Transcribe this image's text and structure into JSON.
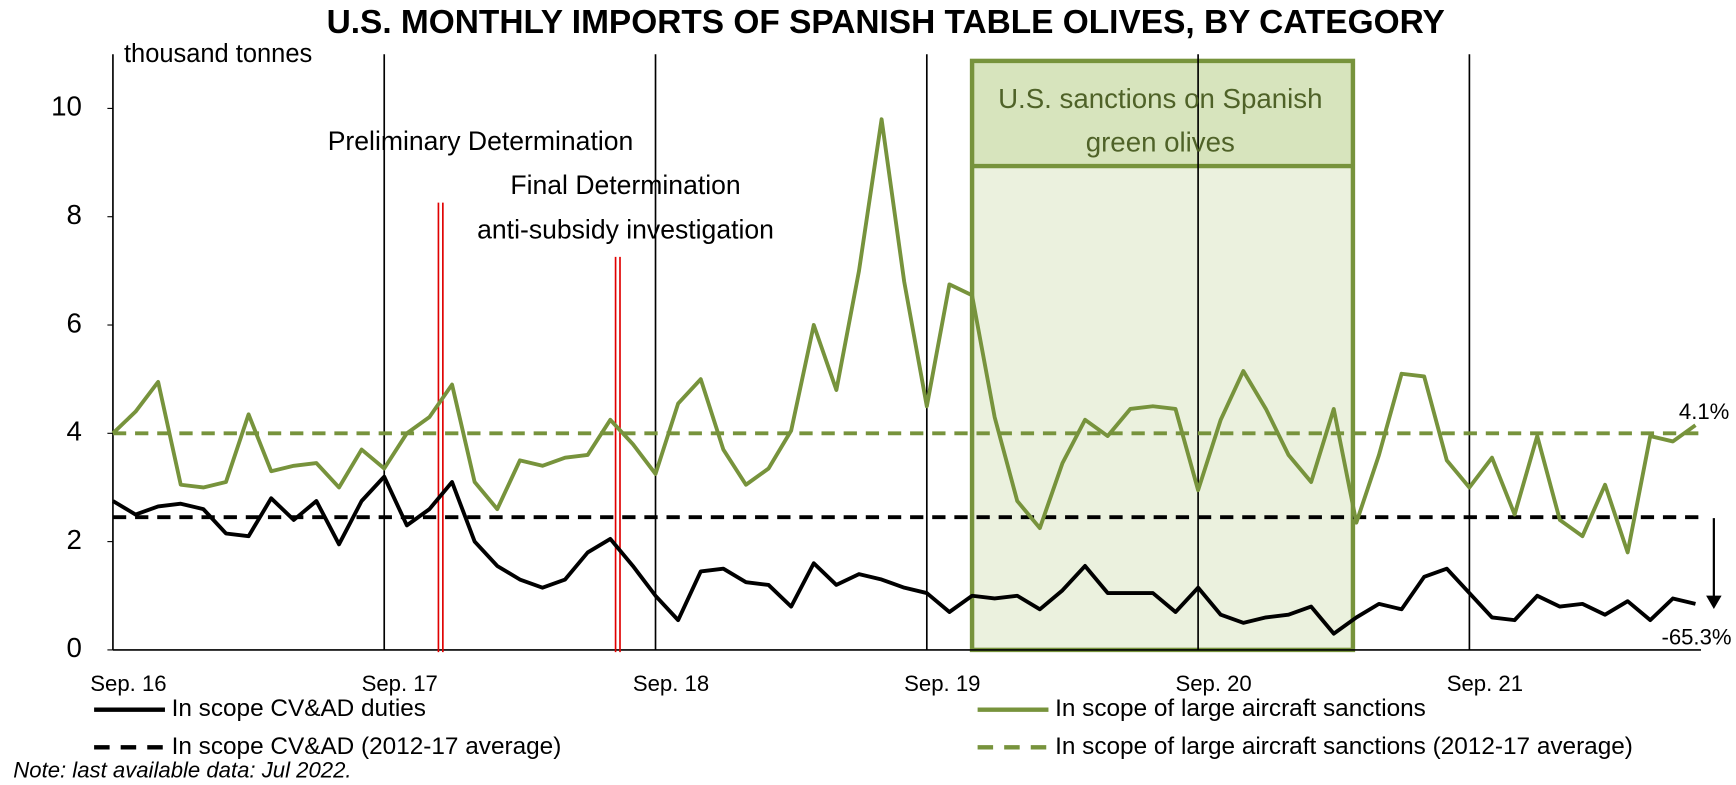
{
  "chart_data": {
    "type": "line",
    "title": "U.S. MONTHLY IMPORTS OF SPANISH TABLE OLIVES, BY CATEGORY",
    "y_label": "thousand  tonnes",
    "categories": [
      "Sep. 16",
      null,
      null,
      null,
      null,
      null,
      null,
      null,
      null,
      null,
      null,
      null,
      "Sep. 17",
      null,
      null,
      null,
      null,
      null,
      null,
      null,
      null,
      null,
      null,
      null,
      "Sep. 18",
      null,
      null,
      null,
      null,
      null,
      null,
      null,
      null,
      null,
      null,
      null,
      "Sep. 19",
      null,
      null,
      null,
      null,
      null,
      null,
      null,
      null,
      null,
      null,
      null,
      "Sep. 20",
      null,
      null,
      null,
      null,
      null,
      null,
      null,
      null,
      null,
      null,
      null,
      "Sep. 21",
      null,
      null,
      null,
      null,
      null,
      null,
      null,
      null,
      null,
      null
    ],
    "series": [
      {
        "name": "In scope CV&AD duties",
        "color": "#000000",
        "values": [
          2.75,
          2.5,
          2.65,
          2.7,
          2.6,
          2.15,
          2.1,
          2.8,
          2.4,
          2.75,
          1.95,
          2.75,
          3.2,
          2.3,
          2.6,
          3.1,
          2.0,
          1.55,
          1.3,
          1.15,
          1.3,
          1.8,
          2.05,
          1.55,
          1.0,
          0.55,
          1.45,
          1.5,
          1.25,
          1.2,
          0.8,
          1.6,
          1.2,
          1.4,
          1.3,
          1.15,
          1.05,
          0.7,
          1.0,
          0.95,
          1.0,
          0.75,
          1.1,
          1.55,
          1.05,
          1.05,
          1.05,
          0.7,
          1.15,
          0.65,
          0.5,
          0.6,
          0.65,
          0.8,
          0.3,
          0.6,
          0.85,
          0.75,
          1.35,
          1.5,
          1.05,
          0.6,
          0.55,
          1.0,
          0.8,
          0.85,
          0.65,
          0.9,
          0.55,
          0.95,
          0.85
        ]
      },
      {
        "name": "In scope of large aircraft sanctions",
        "color": "#77933c",
        "values": [
          4.0,
          4.4,
          4.95,
          3.05,
          3.0,
          3.1,
          4.35,
          3.3,
          3.4,
          3.45,
          3.0,
          3.7,
          3.35,
          4.0,
          4.3,
          4.9,
          3.1,
          2.6,
          3.5,
          3.4,
          3.55,
          3.6,
          4.25,
          3.8,
          3.25,
          4.55,
          5.0,
          3.7,
          3.05,
          3.35,
          4.05,
          6.0,
          4.8,
          7.0,
          9.8,
          6.8,
          4.5,
          6.75,
          6.55,
          4.3,
          2.75,
          2.25,
          3.45,
          4.25,
          3.95,
          4.45,
          4.5,
          4.45,
          2.95,
          4.25,
          5.15,
          4.45,
          3.6,
          3.1,
          4.45,
          2.35,
          3.6,
          5.1,
          5.05,
          3.5,
          3.0,
          3.55,
          2.5,
          3.95,
          2.4,
          2.1,
          3.05,
          1.8,
          3.95,
          3.85,
          4.15
        ]
      }
    ],
    "averages": [
      {
        "name": "In scope CV&AD (2012-17 average)",
        "color": "#000000",
        "value": 2.45
      },
      {
        "name": "In scope of large aircraft sanctions (2012-17 average)",
        "color": "#77933c",
        "value": 4.0
      }
    ],
    "annotations": [
      "Preliminary Determination",
      "Final Determination",
      "anti-subsidy investigation",
      "U.S. sanctions on Spanish",
      "green olives",
      "4.1%",
      "-65.3%"
    ],
    "note": "Note: last available data: Jul 2022.",
    "ylim": [
      0,
      11
    ],
    "yticks": [
      0,
      2,
      4,
      6,
      8,
      10
    ]
  }
}
